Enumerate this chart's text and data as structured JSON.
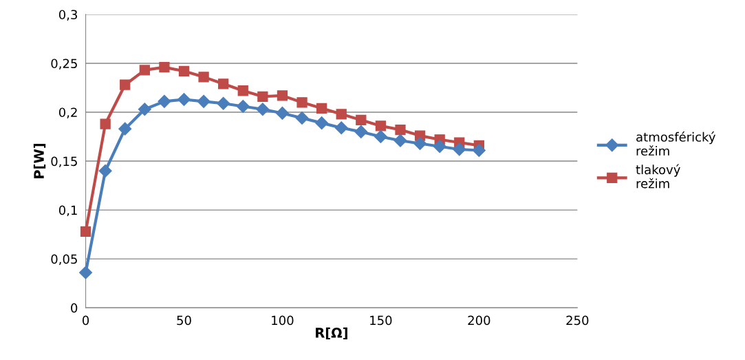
{
  "chart_data": {
    "type": "line",
    "xlabel": "R[Ω]",
    "ylabel": "P[W]",
    "x": [
      0,
      10,
      20,
      30,
      40,
      50,
      60,
      70,
      80,
      90,
      100,
      110,
      120,
      130,
      140,
      150,
      160,
      170,
      180,
      190,
      200
    ],
    "series": [
      {
        "name": "atmosférický režim",
        "color": "#4a7ebb",
        "marker": "diamond",
        "values": [
          0.036,
          0.14,
          0.183,
          0.203,
          0.211,
          0.213,
          0.211,
          0.209,
          0.206,
          0.203,
          0.199,
          0.194,
          0.189,
          0.184,
          0.18,
          0.175,
          0.171,
          0.168,
          0.165,
          0.162,
          0.161
        ]
      },
      {
        "name": "tlakový režim",
        "color": "#be4b48",
        "marker": "square",
        "values": [
          0.078,
          0.188,
          0.228,
          0.243,
          0.246,
          0.242,
          0.236,
          0.229,
          0.222,
          0.216,
          0.217,
          0.21,
          0.204,
          0.198,
          0.192,
          0.186,
          0.182,
          0.176,
          0.172,
          0.169,
          0.166
        ]
      }
    ],
    "xlim": [
      0,
      250
    ],
    "xticks": [
      0,
      50,
      100,
      150,
      200,
      250
    ],
    "ylim": [
      0,
      0.3
    ],
    "yticks": [
      0,
      {
        "value": 0.05,
        "label": "0,05"
      },
      {
        "value": 0.1,
        "label": "0,1"
      },
      {
        "value": 0.15,
        "label": "0,15"
      },
      {
        "value": 0.2,
        "label": "0,2"
      },
      {
        "value": 0.25,
        "label": "0,25"
      },
      {
        "value": 0.3,
        "label": "0,3"
      }
    ],
    "grid": "y",
    "legend": "right",
    "line_style": "solid"
  }
}
